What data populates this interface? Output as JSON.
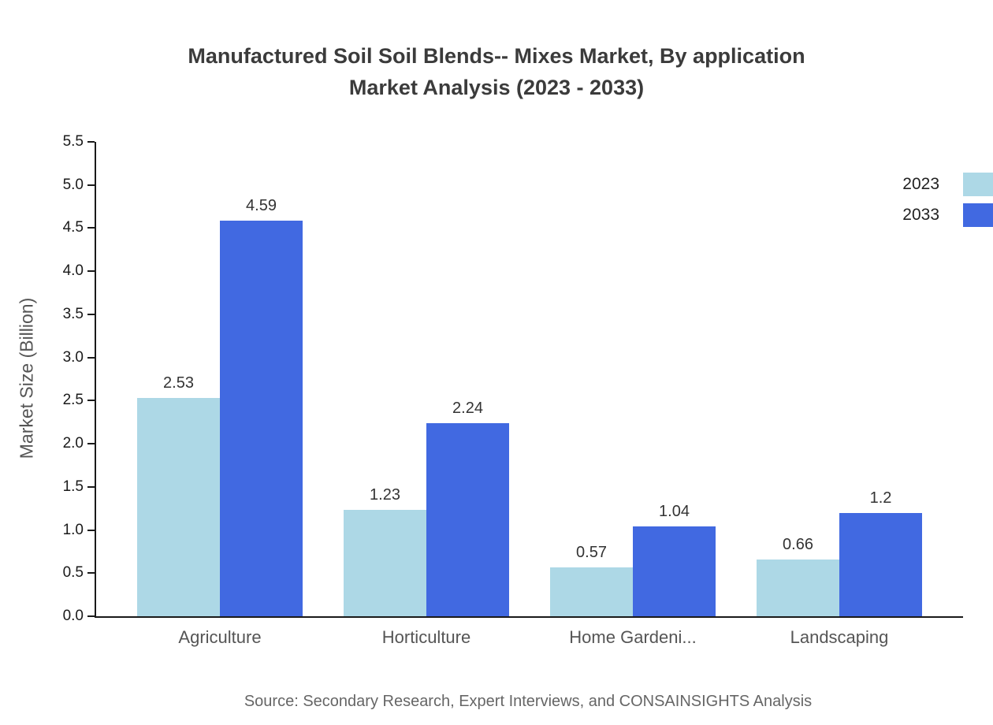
{
  "header": {
    "title_line1": "Manufactured Soil Soil Blends-- Mixes Market, By application",
    "title_line2": "Market Analysis (2023 - 2033)"
  },
  "footer": {
    "source": "Source: Secondary Research, Expert Interviews, and CONSAINSIGHTS Analysis"
  },
  "chart_data": {
    "type": "bar",
    "title": "Manufactured Soil Soil Blends-- Mixes Market, By application Market Analysis (2023 - 2033)",
    "xlabel": "",
    "ylabel": "Market Size (Billion)",
    "ylim": [
      0,
      5.5
    ],
    "ytick_labels": [
      "0.0",
      "0.5",
      "1.0",
      "1.5",
      "2.0",
      "2.5",
      "3.0",
      "3.5",
      "4.0",
      "4.5",
      "5.0",
      "5.5"
    ],
    "categories": [
      "Agriculture",
      "Horticulture",
      "Home Gardeni...",
      "Landscaping"
    ],
    "series": [
      {
        "name": "2023",
        "color": "#ADD8E6",
        "values": [
          2.53,
          1.23,
          0.57,
          0.66
        ],
        "labels": [
          "2.53",
          "1.23",
          "0.57",
          "0.66"
        ]
      },
      {
        "name": "2033",
        "color": "#4169E1",
        "values": [
          4.59,
          2.24,
          1.04,
          1.2
        ],
        "labels": [
          "4.59",
          "2.24",
          "1.04",
          "1.2"
        ]
      }
    ],
    "legend_position": "top-right",
    "grid": false
  }
}
